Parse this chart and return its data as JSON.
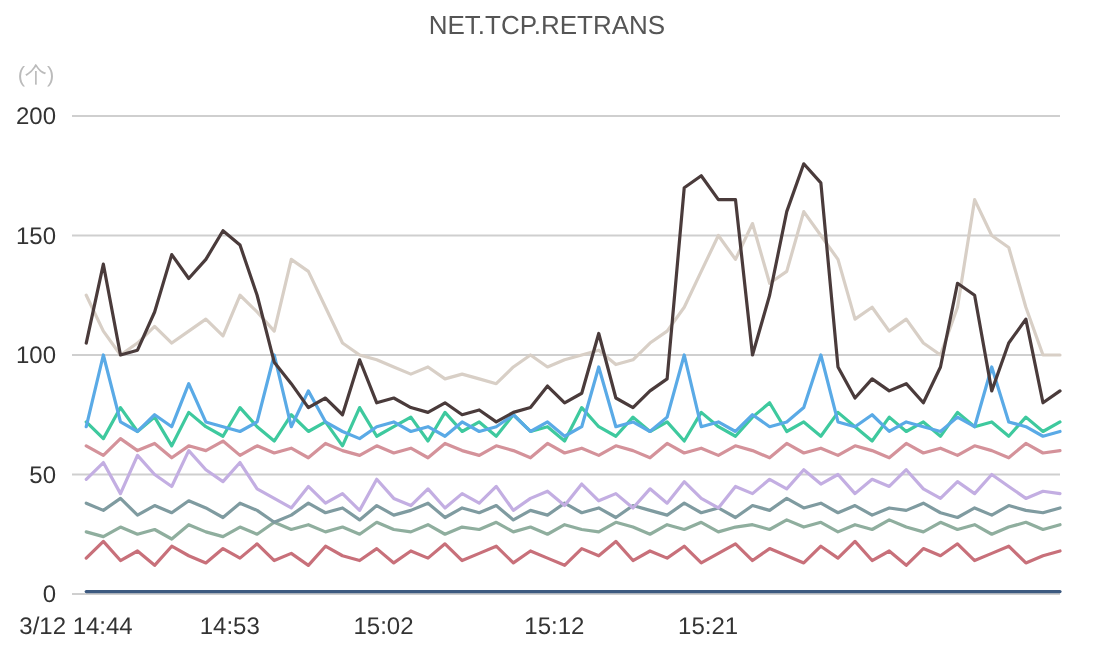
{
  "chart_data": {
    "type": "line",
    "title": "NET.TCP.RETRANS",
    "ylabel": "(个)",
    "x": [
      14.7433,
      14.76,
      14.7767,
      14.7933,
      14.81,
      14.8267,
      14.8433,
      14.86,
      14.8767,
      14.8933,
      14.91,
      14.9267,
      14.9433,
      14.96,
      14.9767,
      14.9933,
      15.01,
      15.0267,
      15.0433,
      15.06,
      15.0767,
      15.0933,
      15.11,
      15.1267,
      15.1433,
      15.16,
      15.1767,
      15.1933,
      15.21,
      15.2267,
      15.2433,
      15.26,
      15.2767,
      15.2933,
      15.31,
      15.3267,
      15.3433,
      15.36,
      15.3767,
      15.3933,
      15.41,
      15.4267,
      15.4433,
      15.46,
      15.4767,
      15.4933,
      15.51,
      15.5267,
      15.5433,
      15.56,
      15.5767,
      15.5933,
      15.61,
      15.6267,
      15.6433,
      15.66,
      15.6767,
      15.6933
    ],
    "xlim": [
      14.7333,
      15.6933
    ],
    "xticks": [
      {
        "value": 14.7333,
        "label": "3/12 14:44"
      },
      {
        "value": 14.8833,
        "label": "14:53"
      },
      {
        "value": 15.0333,
        "label": "15:02"
      },
      {
        "value": 15.2,
        "label": "15:12"
      },
      {
        "value": 15.35,
        "label": "15:21"
      }
    ],
    "ylim": [
      0,
      200
    ],
    "yticks": [
      0,
      50,
      100,
      150,
      200
    ],
    "grid": "y",
    "series": [
      {
        "color": "#3d5a80",
        "values": [
          1,
          1,
          1,
          1,
          1,
          1,
          1,
          1,
          1,
          1,
          1,
          1,
          1,
          1,
          1,
          1,
          1,
          1,
          1,
          1,
          1,
          1,
          1,
          1,
          1,
          1,
          1,
          1,
          1,
          1,
          1,
          1,
          1,
          1,
          1,
          1,
          1,
          1,
          1,
          1,
          1,
          1,
          1,
          1,
          1,
          1,
          1,
          1,
          1,
          1,
          1,
          1,
          1,
          1,
          1,
          1,
          1,
          1
        ]
      },
      {
        "color": "#c8707a",
        "values": [
          15,
          22,
          14,
          18,
          12,
          20,
          16,
          13,
          19,
          15,
          21,
          14,
          17,
          12,
          20,
          16,
          14,
          19,
          13,
          18,
          15,
          21,
          14,
          17,
          20,
          13,
          18,
          15,
          12,
          19,
          16,
          22,
          14,
          18,
          15,
          20,
          13,
          17,
          21,
          14,
          19,
          16,
          13,
          20,
          15,
          22,
          14,
          18,
          12,
          19,
          16,
          21,
          14,
          17,
          20,
          13,
          16,
          18
        ]
      },
      {
        "color": "#8fae9e",
        "values": [
          26,
          24,
          28,
          25,
          27,
          23,
          29,
          26,
          24,
          28,
          25,
          30,
          27,
          29,
          26,
          28,
          25,
          30,
          27,
          26,
          29,
          25,
          28,
          27,
          30,
          26,
          28,
          25,
          29,
          27,
          26,
          30,
          28,
          25,
          29,
          27,
          30,
          26,
          28,
          29,
          27,
          31,
          28,
          30,
          26,
          29,
          27,
          31,
          28,
          26,
          30,
          27,
          29,
          25,
          28,
          30,
          27,
          29
        ]
      },
      {
        "color": "#7f9ba0",
        "values": [
          38,
          35,
          40,
          33,
          37,
          34,
          39,
          36,
          32,
          38,
          35,
          30,
          33,
          38,
          34,
          36,
          31,
          37,
          33,
          35,
          38,
          32,
          36,
          34,
          37,
          31,
          35,
          33,
          38,
          34,
          36,
          32,
          37,
          35,
          33,
          38,
          34,
          36,
          32,
          37,
          35,
          40,
          36,
          38,
          34,
          37,
          33,
          36,
          35,
          38,
          34,
          32,
          36,
          33,
          37,
          35,
          34,
          36
        ]
      },
      {
        "color": "#c3aee2",
        "values": [
          48,
          55,
          42,
          58,
          50,
          45,
          60,
          52,
          47,
          55,
          44,
          40,
          36,
          45,
          38,
          42,
          35,
          48,
          40,
          37,
          44,
          36,
          42,
          38,
          45,
          35,
          40,
          43,
          37,
          46,
          39,
          42,
          36,
          44,
          38,
          47,
          40,
          36,
          45,
          42,
          48,
          44,
          52,
          46,
          50,
          42,
          48,
          45,
          52,
          44,
          40,
          47,
          42,
          50,
          45,
          40,
          43,
          42
        ]
      },
      {
        "color": "#d4929a",
        "values": [
          62,
          58,
          65,
          60,
          63,
          57,
          62,
          60,
          64,
          58,
          62,
          59,
          61,
          57,
          63,
          60,
          58,
          62,
          59,
          61,
          57,
          63,
          60,
          58,
          62,
          60,
          57,
          63,
          59,
          61,
          58,
          62,
          60,
          57,
          63,
          59,
          61,
          58,
          62,
          60,
          57,
          63,
          59,
          61,
          58,
          62,
          60,
          57,
          63,
          59,
          61,
          58,
          62,
          60,
          57,
          63,
          59,
          60
        ]
      },
      {
        "color": "#3ec99e",
        "values": [
          72,
          65,
          78,
          68,
          74,
          62,
          76,
          70,
          66,
          78,
          70,
          64,
          75,
          68,
          72,
          62,
          78,
          66,
          70,
          74,
          64,
          76,
          68,
          72,
          66,
          75,
          68,
          70,
          64,
          78,
          70,
          66,
          74,
          68,
          72,
          64,
          76,
          70,
          66,
          74,
          80,
          68,
          72,
          66,
          76,
          70,
          64,
          74,
          68,
          72,
          66,
          76,
          70,
          72,
          66,
          74,
          68,
          72
        ]
      },
      {
        "color": "#5aaae6",
        "values": [
          70,
          100,
          72,
          68,
          75,
          70,
          88,
          72,
          70,
          68,
          72,
          100,
          70,
          85,
          72,
          68,
          65,
          70,
          72,
          68,
          70,
          66,
          72,
          68,
          70,
          75,
          68,
          72,
          66,
          70,
          95,
          70,
          72,
          68,
          74,
          100,
          70,
          72,
          68,
          75,
          70,
          72,
          78,
          100,
          72,
          70,
          75,
          68,
          72,
          70,
          68,
          74,
          70,
          95,
          72,
          70,
          66,
          68
        ]
      },
      {
        "color": "#d8cfc6",
        "values": [
          125,
          110,
          100,
          105,
          112,
          105,
          110,
          115,
          108,
          125,
          118,
          110,
          140,
          135,
          120,
          105,
          100,
          98,
          95,
          92,
          95,
          90,
          92,
          90,
          88,
          95,
          100,
          95,
          98,
          100,
          102,
          96,
          98,
          105,
          110,
          120,
          135,
          150,
          140,
          155,
          130,
          135,
          160,
          150,
          140,
          115,
          120,
          110,
          115,
          105,
          100,
          120,
          165,
          150,
          145,
          120,
          100,
          100
        ]
      },
      {
        "color": "#4a3b3b",
        "values": [
          105,
          138,
          100,
          102,
          118,
          142,
          132,
          140,
          152,
          146,
          125,
          97,
          88,
          78,
          82,
          75,
          98,
          80,
          82,
          78,
          76,
          80,
          75,
          77,
          72,
          76,
          78,
          87,
          80,
          84,
          109,
          82,
          78,
          85,
          90,
          170,
          175,
          165,
          165,
          100,
          125,
          160,
          180,
          172,
          95,
          82,
          90,
          85,
          88,
          80,
          95,
          130,
          125,
          85,
          105,
          115,
          80,
          85
        ]
      }
    ]
  }
}
